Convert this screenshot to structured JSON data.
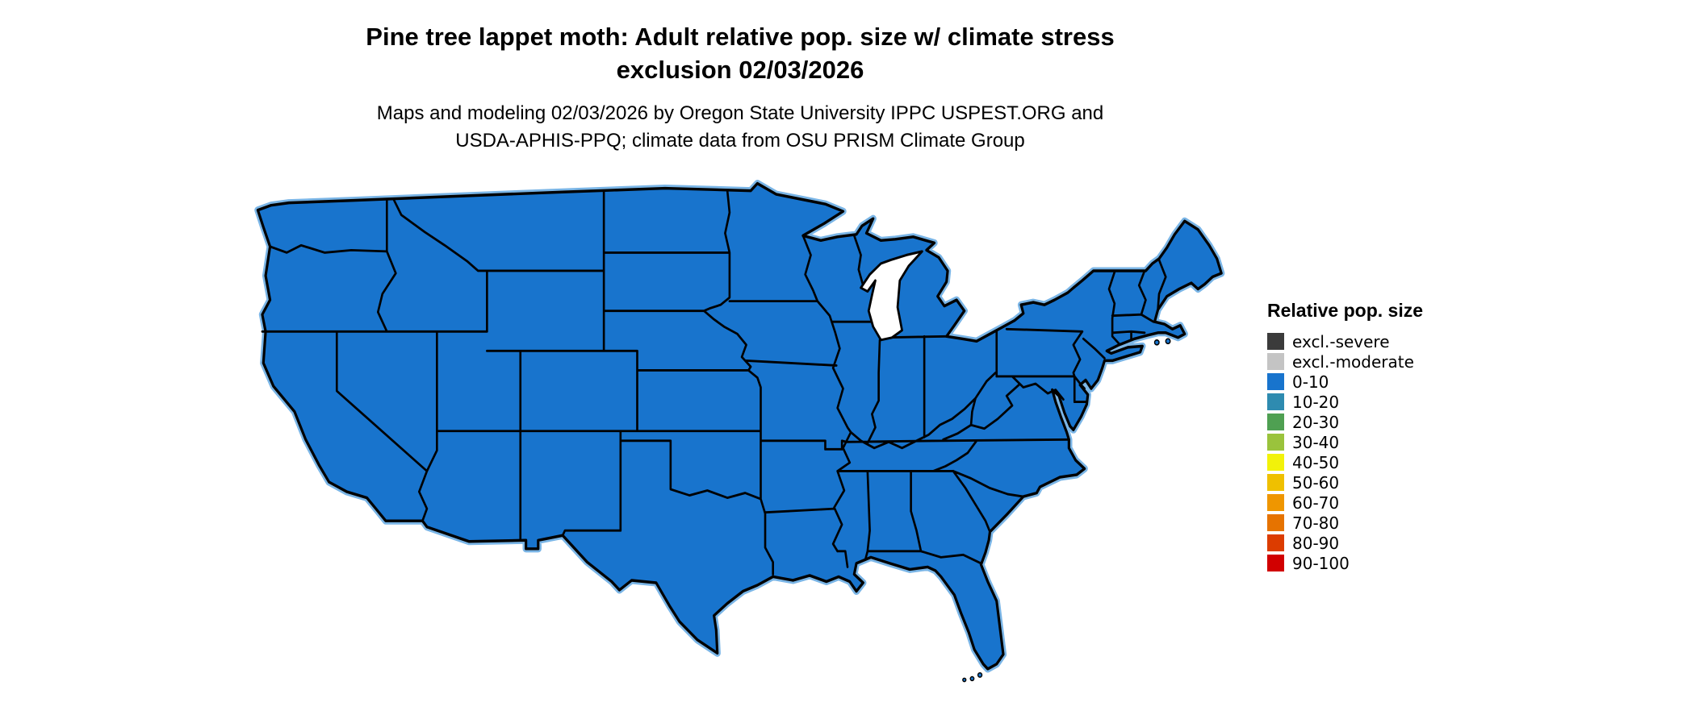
{
  "header": {
    "title": "Pine tree lappet moth: Adult relative pop. size w/ climate stress exclusion 02/03/2026",
    "subtitle": "Maps and modeling 02/03/2026 by Oregon State University IPPC USPEST.ORG and USDA-APHIS-PPQ; climate data from OSU PRISM Climate Group"
  },
  "map": {
    "region": "Continental United States",
    "depicted_value": "Adult relative population size, uniform lowest class across all states",
    "uniform_category": "0-10",
    "land_fill": "#1874cd",
    "border_color": "#000000",
    "coast_fringe": "#7ab5e6",
    "lake_fill": "#ffffff"
  },
  "legend": {
    "title": "Relative pop. size",
    "items": [
      {
        "label": "excl.-severe",
        "color": "#3b3b3b"
      },
      {
        "label": "excl.-moderate",
        "color": "#c4c4c4"
      },
      {
        "label": "0-10",
        "color": "#1874cd"
      },
      {
        "label": "10-20",
        "color": "#2e8bb0"
      },
      {
        "label": "20-30",
        "color": "#4fa052"
      },
      {
        "label": "30-40",
        "color": "#9ac33c"
      },
      {
        "label": "40-50",
        "color": "#f2f20a"
      },
      {
        "label": "50-60",
        "color": "#efc000"
      },
      {
        "label": "60-70",
        "color": "#ef9600"
      },
      {
        "label": "70-80",
        "color": "#e67300"
      },
      {
        "label": "80-90",
        "color": "#dc3c00"
      },
      {
        "label": "90-100",
        "color": "#d10000"
      }
    ]
  }
}
